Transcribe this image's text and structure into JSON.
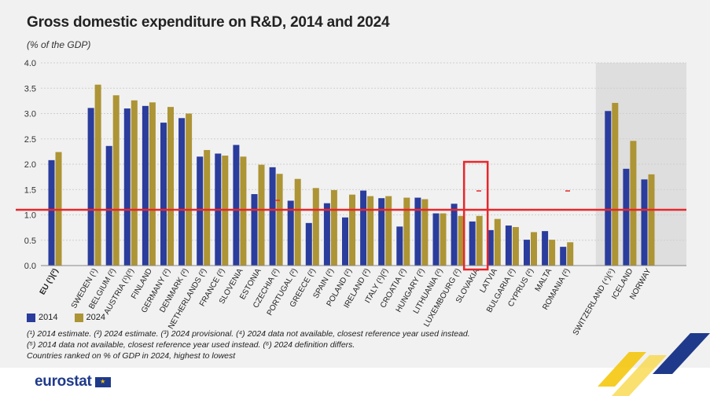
{
  "header": {
    "title": "Gross domestic expenditure on R&D, 2014 and 2024",
    "subtitle": "(% of the GDP)"
  },
  "legend": {
    "items": [
      {
        "label": "2014",
        "color": "#2a3c9c"
      },
      {
        "label": "2024",
        "color": "#ad9435"
      }
    ]
  },
  "notes": [
    "(¹) 2014 estimate. (²) 2024 estimate. (³) 2024 provisional. (⁴) 2024 data not available, closest reference year used instead.",
    "(⁵) 2014 data not available, closest reference year used instead. (⁶) 2024 definition differs.",
    "Countries ranked on % of GDP in 2024, highest to lowest"
  ],
  "logo": {
    "text": "eurostat"
  },
  "colors": {
    "series_2014": "#2a3c9c",
    "series_2024": "#ad9435",
    "highlight": "#e8262b",
    "shade": "#dedede"
  },
  "chart_data": {
    "type": "bar",
    "title": "Gross domestic expenditure on R&D, 2014 and 2024",
    "ylabel": "(% of the GDP)",
    "ylim": [
      0,
      4.0
    ],
    "yticks": [
      "0.0",
      "0.5",
      "1.0",
      "1.5",
      "2.0",
      "2.5",
      "3.0",
      "3.5",
      "4.0"
    ],
    "grid": true,
    "categories": [
      "EU (¹)(²)",
      "SWEDEN (¹)",
      "BELGIUM (²)",
      "AUSTRIA (¹)(³)",
      "FINLAND",
      "GERMANY (²)",
      "DENMARK (²)",
      "NETHERLANDS (²)",
      "FRANCE (²)",
      "SLOVENIA",
      "ESTONIA",
      "CZECHIA (²)",
      "PORTUGAL (²)",
      "GREECE (²)",
      "SPAIN (²)",
      "POLAND (²)",
      "IRELAND (²)",
      "ITALY (¹)(²)",
      "CROATIA (²)",
      "HUNGARY (²)",
      "LITHUANIA (²)",
      "LUXEMBOURG (²)",
      "SLOVAKIA",
      "LATVIA",
      "BULGARIA (²)",
      "CYPRUS (²)",
      "MALTA",
      "ROMANIA (²)",
      "SWITZERLAND (⁴)(⁵)",
      "ICELAND",
      "NORWAY"
    ],
    "series": [
      {
        "name": "2014",
        "values": [
          2.08,
          3.11,
          2.36,
          3.1,
          3.15,
          2.82,
          2.91,
          2.15,
          2.21,
          2.38,
          1.41,
          1.94,
          1.28,
          0.84,
          1.23,
          0.95,
          1.48,
          1.33,
          0.77,
          1.34,
          1.03,
          1.22,
          0.87,
          0.7,
          0.79,
          0.51,
          0.68,
          0.37,
          3.05,
          1.91,
          1.7
        ]
      },
      {
        "name": "2024",
        "values": [
          2.24,
          3.57,
          3.36,
          3.26,
          3.22,
          3.13,
          3.0,
          2.28,
          2.17,
          2.15,
          1.99,
          1.81,
          1.71,
          1.53,
          1.49,
          1.4,
          1.37,
          1.37,
          1.34,
          1.31,
          1.03,
          0.98,
          0.98,
          0.92,
          0.76,
          0.66,
          0.51,
          0.46,
          3.21,
          2.46,
          1.8
        ]
      }
    ],
    "annotations": {
      "reference_line_value": 1.1,
      "highlighted_category": "SLOVAKIA",
      "shaded_group": [
        "SWITZERLAND (⁴)(⁵)",
        "ICELAND",
        "NORWAY"
      ]
    }
  }
}
